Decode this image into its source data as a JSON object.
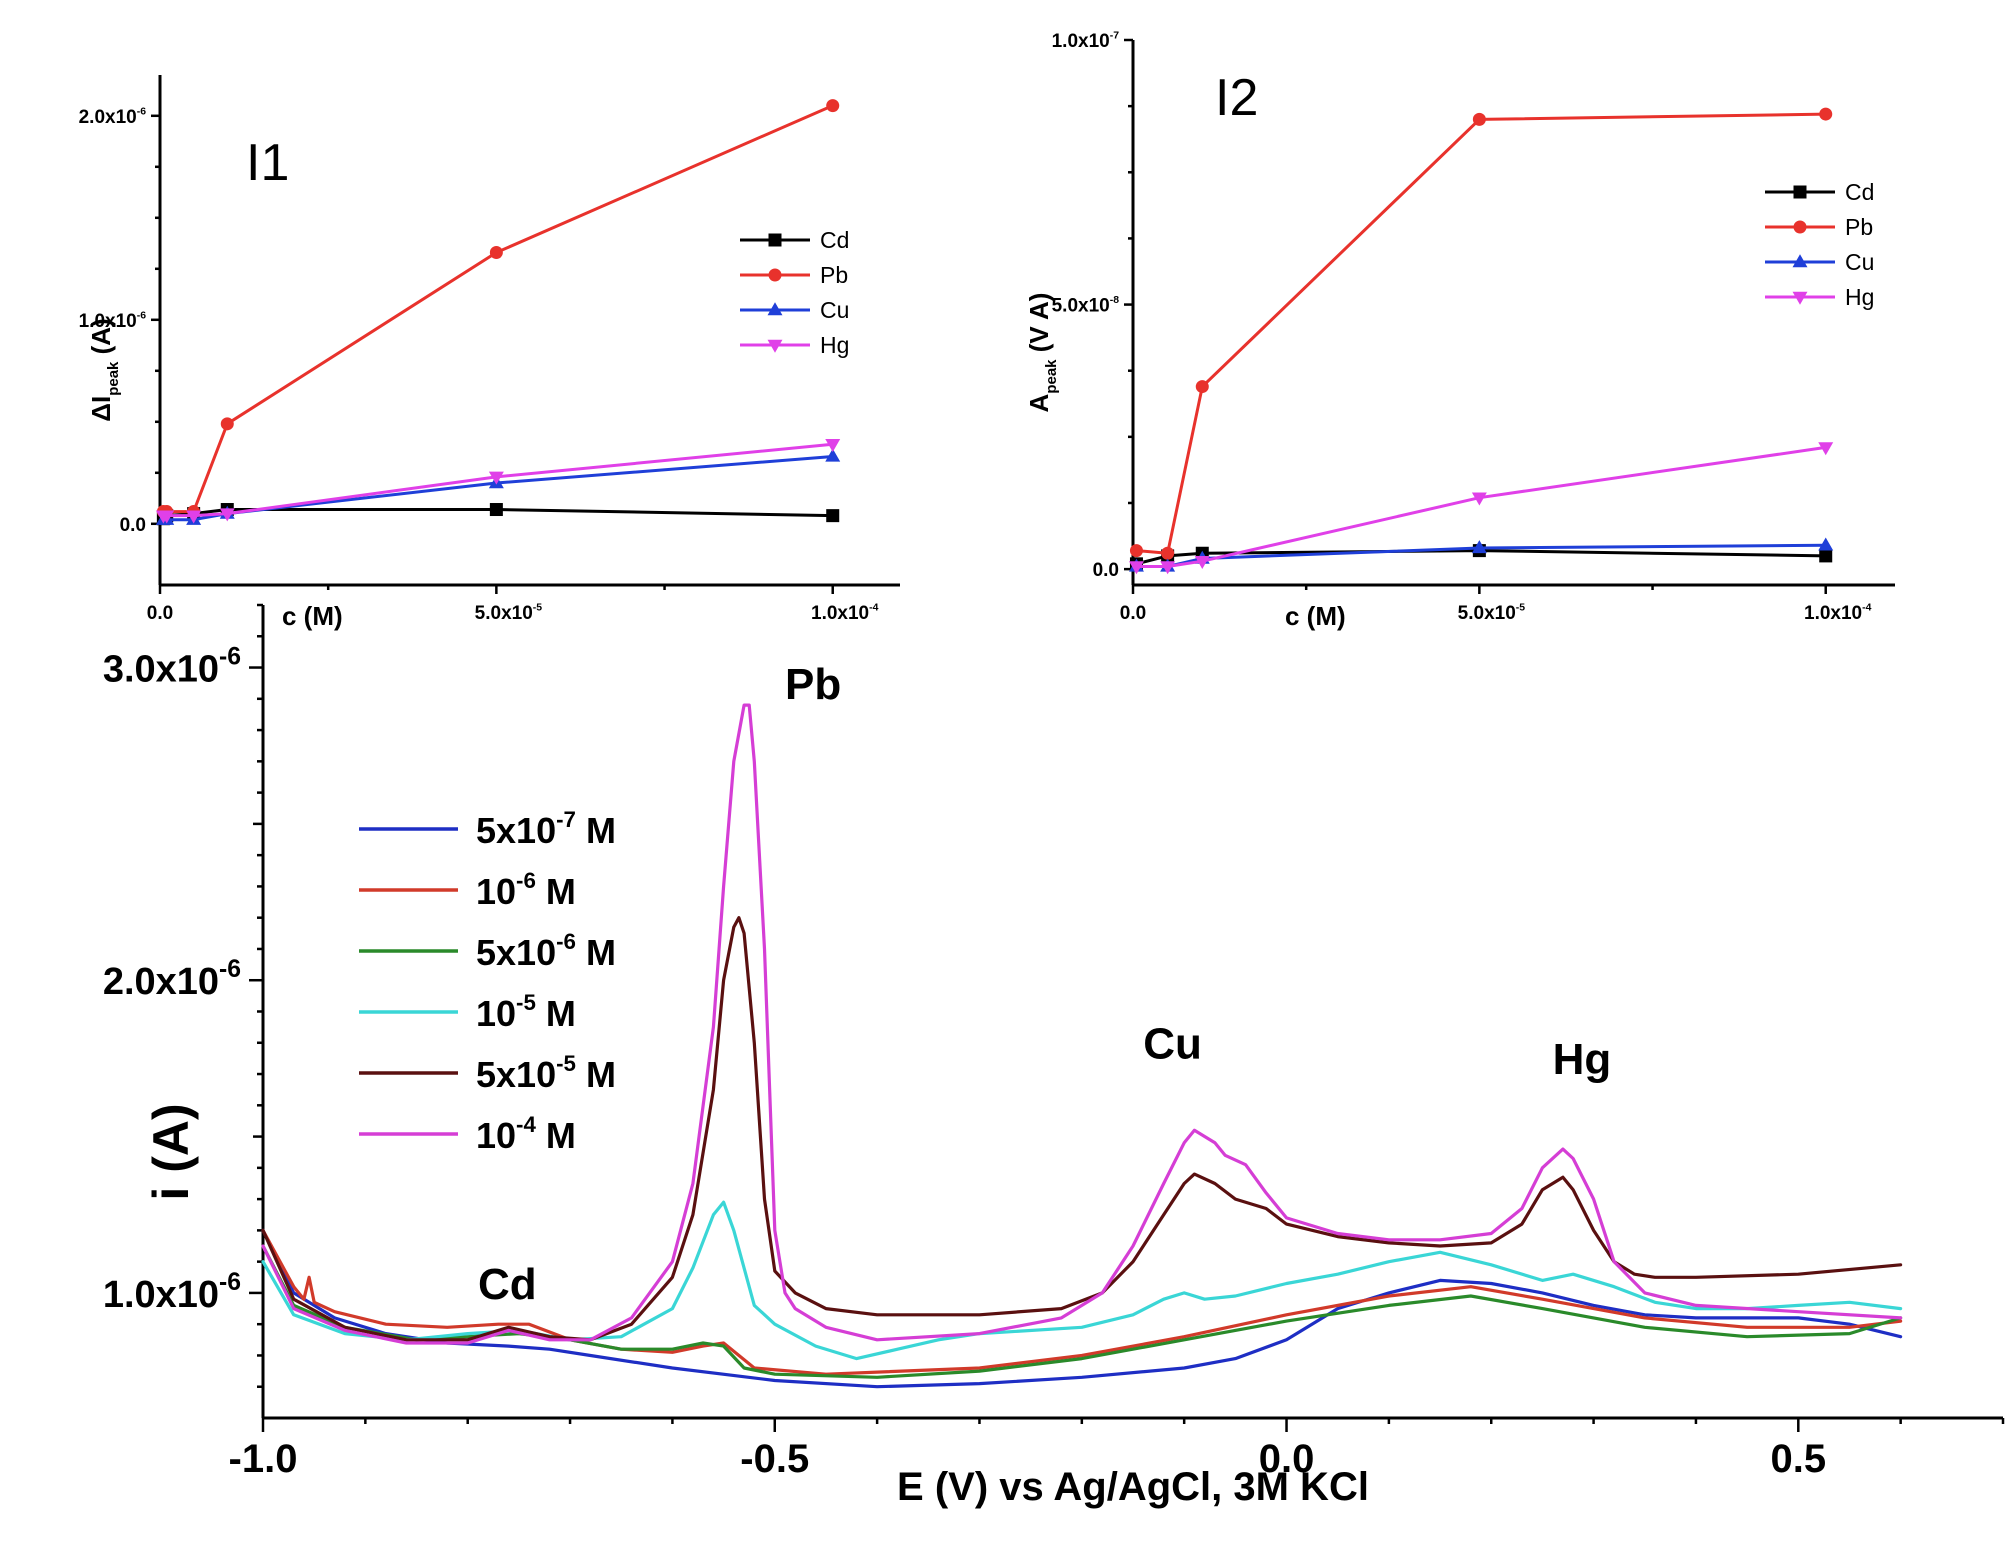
{
  "chart_data": [
    {
      "id": "I1",
      "type": "line",
      "panel_label": "I1",
      "xlabel": "c (M)",
      "ylabel_main": "ΔI",
      "ylabel_sub": "peak",
      "ylabel_unit": " (A)",
      "xlim": [
        0,
        0.00011
      ],
      "ylim": [
        -3e-07,
        2.2e-06
      ],
      "x_ticks": [
        0,
        5e-05,
        0.0001
      ],
      "x_tick_labels": [
        "0.0",
        "5.0x10",
        "1.0x10"
      ],
      "x_tick_exps": [
        "",
        "-5",
        "-4"
      ],
      "y_ticks": [
        0,
        1e-06,
        2e-06
      ],
      "y_tick_labels": [
        "0.0",
        "1.0x10",
        "2.0x10"
      ],
      "y_tick_exps": [
        "",
        "-6",
        "-6"
      ],
      "series": [
        {
          "name": "Cd",
          "color": "#000000",
          "marker": "square",
          "x": [
            5e-07,
            1e-06,
            5e-06,
            1e-05,
            5e-05,
            0.0001
          ],
          "y": [
            2.5e-08,
            4e-08,
            5e-08,
            7e-08,
            7e-08,
            4e-08
          ]
        },
        {
          "name": "Pb",
          "color": "#e8322c",
          "marker": "circle",
          "x": [
            5e-07,
            1e-06,
            5e-06,
            1e-05,
            5e-05,
            0.0001
          ],
          "y": [
            6e-08,
            6e-08,
            6e-08,
            4.9e-07,
            1.33e-06,
            2.05e-06
          ]
        },
        {
          "name": "Cu",
          "color": "#1f3fd8",
          "marker": "triangle-up",
          "x": [
            5e-07,
            1e-06,
            5e-06,
            1e-05,
            5e-05,
            0.0001
          ],
          "y": [
            2e-08,
            2e-08,
            2e-08,
            5e-08,
            2e-07,
            3.3e-07
          ]
        },
        {
          "name": "Hg",
          "color": "#e040e8",
          "marker": "triangle-down",
          "x": [
            5e-07,
            1e-06,
            5e-06,
            1e-05,
            5e-05,
            0.0001
          ],
          "y": [
            4e-08,
            4e-08,
            4e-08,
            5e-08,
            2.3e-07,
            3.9e-07
          ]
        }
      ],
      "legend_position": "middle-right"
    },
    {
      "id": "I2",
      "type": "line",
      "panel_label": "I2",
      "xlabel": "c (M)",
      "ylabel_main": "A",
      "ylabel_sub": "peak",
      "ylabel_unit": " (V A)",
      "xlim": [
        0,
        0.00011
      ],
      "ylim": [
        -3e-09,
        1e-07
      ],
      "x_ticks": [
        0,
        5e-05,
        0.0001
      ],
      "x_tick_labels": [
        "0.0",
        "5.0x10",
        "1.0x10"
      ],
      "x_tick_exps": [
        "",
        "-5",
        "-4"
      ],
      "y_ticks": [
        0,
        5e-08,
        1e-07
      ],
      "y_tick_labels": [
        "0.0",
        "5.0x10",
        "1.0x10"
      ],
      "y_tick_exps": [
        "",
        "-8",
        "-7"
      ],
      "series": [
        {
          "name": "Cd",
          "color": "#000000",
          "marker": "square",
          "x": [
            5e-07,
            5e-06,
            1e-05,
            5e-05,
            0.0001
          ],
          "y": [
            1e-09,
            2.5e-09,
            3e-09,
            3.5e-09,
            2.5e-09
          ]
        },
        {
          "name": "Pb",
          "color": "#e8322c",
          "marker": "circle",
          "x": [
            5e-07,
            5e-06,
            1e-05,
            5e-05,
            0.0001
          ],
          "y": [
            3.5e-09,
            3e-09,
            3.45e-08,
            8.5e-08,
            8.6e-08
          ]
        },
        {
          "name": "Cu",
          "color": "#1f3fd8",
          "marker": "triangle-up",
          "x": [
            5e-07,
            5e-06,
            1e-05,
            5e-05,
            0.0001
          ],
          "y": [
            5e-10,
            5e-10,
            2e-09,
            4e-09,
            4.5e-09
          ]
        },
        {
          "name": "Hg",
          "color": "#e040e8",
          "marker": "triangle-down",
          "x": [
            5e-07,
            5e-06,
            1e-05,
            5e-05,
            0.0001
          ],
          "y": [
            5e-10,
            5e-10,
            1.5e-09,
            1.35e-08,
            2.3e-08
          ]
        }
      ],
      "legend_position": "top-right"
    },
    {
      "id": "main",
      "type": "line",
      "xlabel": "E (V) vs Ag/AgCl, 3M KCl",
      "ylabel": "i (A)",
      "xlim": [
        -1.0,
        0.7
      ],
      "ylim": [
        6e-07,
        3.2e-06
      ],
      "x_ticks": [
        -1.0,
        -0.5,
        0.0,
        0.5
      ],
      "x_tick_labels": [
        "-1.0",
        "-0.5",
        "0.0",
        "0.5"
      ],
      "y_ticks": [
        1e-06,
        2e-06,
        3e-06
      ],
      "y_tick_labels": [
        "1.0x10",
        "2.0x10",
        "3.0x10"
      ],
      "y_tick_exps": [
        "-6",
        "-6",
        "-6"
      ],
      "annotations": [
        {
          "text": "Pb",
          "x": -0.49,
          "y": 2.9e-06
        },
        {
          "text": "Cd",
          "x": -0.79,
          "y": 9.8e-07
        },
        {
          "text": "Cu",
          "x": -0.14,
          "y": 1.75e-06
        },
        {
          "text": "Hg",
          "x": 0.26,
          "y": 1.7e-06
        }
      ],
      "legend_position": "top-left",
      "series": [
        {
          "name_base": "5x10",
          "name_exp": "-7",
          "name_unit": " M",
          "color": "#1e2ec4",
          "x": [
            -1.0,
            -0.97,
            -0.93,
            -0.88,
            -0.82,
            -0.76,
            -0.72,
            -0.68,
            -0.6,
            -0.5,
            -0.4,
            -0.3,
            -0.2,
            -0.1,
            -0.05,
            0.0,
            0.05,
            0.1,
            0.15,
            0.2,
            0.25,
            0.3,
            0.35,
            0.4,
            0.45,
            0.5,
            0.55,
            0.6
          ],
          "y": [
            1.2e-06,
            1e-06,
            9.2e-07,
            8.7e-07,
            8.4e-07,
            8.3e-07,
            8.2e-07,
            8e-07,
            7.6e-07,
            7.2e-07,
            7e-07,
            7.1e-07,
            7.3e-07,
            7.6e-07,
            7.9e-07,
            8.5e-07,
            9.5e-07,
            1e-06,
            1.04e-06,
            1.03e-06,
            1e-06,
            9.6e-07,
            9.3e-07,
            9.2e-07,
            9.2e-07,
            9.2e-07,
            9e-07,
            8.6e-07
          ]
        },
        {
          "name_base": "10",
          "name_exp": "-6",
          "name_unit": " M",
          "color": "#d13a2a",
          "x": [
            -1.0,
            -0.97,
            -0.96,
            -0.955,
            -0.95,
            -0.93,
            -0.88,
            -0.82,
            -0.77,
            -0.74,
            -0.7,
            -0.65,
            -0.6,
            -0.57,
            -0.55,
            -0.52,
            -0.45,
            -0.3,
            -0.2,
            -0.1,
            0.0,
            0.1,
            0.18,
            0.25,
            0.35,
            0.45,
            0.55,
            0.6
          ],
          "y": [
            1.2e-06,
            1.02e-06,
            9.8e-07,
            1.05e-06,
            9.7e-07,
            9.4e-07,
            9e-07,
            8.9e-07,
            9e-07,
            9e-07,
            8.5e-07,
            8.2e-07,
            8.1e-07,
            8.3e-07,
            8.4e-07,
            7.6e-07,
            7.4e-07,
            7.6e-07,
            8e-07,
            8.6e-07,
            9.3e-07,
            9.9e-07,
            1.02e-06,
            9.8e-07,
            9.2e-07,
            8.9e-07,
            8.9e-07,
            9.1e-07
          ]
        },
        {
          "name_base": "5x10",
          "name_exp": "-6",
          "name_unit": " M",
          "color": "#2a8a2a",
          "x": [
            -1.0,
            -0.97,
            -0.92,
            -0.85,
            -0.8,
            -0.75,
            -0.7,
            -0.65,
            -0.6,
            -0.57,
            -0.55,
            -0.53,
            -0.5,
            -0.4,
            -0.3,
            -0.2,
            -0.1,
            0.0,
            0.1,
            0.18,
            0.25,
            0.35,
            0.45,
            0.55,
            0.6
          ],
          "y": [
            1.15e-06,
            9.6e-07,
            8.9e-07,
            8.5e-07,
            8.6e-07,
            8.7e-07,
            8.5e-07,
            8.2e-07,
            8.2e-07,
            8.4e-07,
            8.3e-07,
            7.6e-07,
            7.4e-07,
            7.3e-07,
            7.5e-07,
            7.9e-07,
            8.5e-07,
            9.1e-07,
            9.6e-07,
            9.9e-07,
            9.5e-07,
            8.9e-07,
            8.6e-07,
            8.7e-07,
            9.2e-07
          ]
        },
        {
          "name_base": "10",
          "name_exp": "-5",
          "name_unit": " M",
          "color": "#3ad6d6",
          "x": [
            -1.0,
            -0.97,
            -0.92,
            -0.86,
            -0.8,
            -0.75,
            -0.7,
            -0.65,
            -0.6,
            -0.58,
            -0.56,
            -0.55,
            -0.54,
            -0.52,
            -0.5,
            -0.46,
            -0.42,
            -0.38,
            -0.34,
            -0.3,
            -0.2,
            -0.15,
            -0.12,
            -0.1,
            -0.08,
            -0.05,
            0.0,
            0.05,
            0.1,
            0.15,
            0.2,
            0.25,
            0.28,
            0.32,
            0.36,
            0.4,
            0.45,
            0.5,
            0.55,
            0.6
          ],
          "y": [
            1.1e-06,
            9.3e-07,
            8.7e-07,
            8.5e-07,
            8.7e-07,
            8.8e-07,
            8.5e-07,
            8.6e-07,
            9.5e-07,
            1.08e-06,
            1.25e-06,
            1.29e-06,
            1.2e-06,
            9.6e-07,
            9e-07,
            8.3e-07,
            7.9e-07,
            8.2e-07,
            8.5e-07,
            8.7e-07,
            8.9e-07,
            9.3e-07,
            9.8e-07,
            1e-06,
            9.8e-07,
            9.9e-07,
            1.03e-06,
            1.06e-06,
            1.1e-06,
            1.13e-06,
            1.09e-06,
            1.04e-06,
            1.06e-06,
            1.02e-06,
            9.7e-07,
            9.5e-07,
            9.5e-07,
            9.6e-07,
            9.7e-07,
            9.5e-07
          ]
        },
        {
          "name_base": "5x10",
          "name_exp": "-5",
          "name_unit": " M",
          "color": "#5a1010",
          "x": [
            -1.0,
            -0.97,
            -0.92,
            -0.86,
            -0.8,
            -0.76,
            -0.72,
            -0.68,
            -0.64,
            -0.6,
            -0.58,
            -0.56,
            -0.55,
            -0.54,
            -0.535,
            -0.53,
            -0.52,
            -0.51,
            -0.5,
            -0.48,
            -0.45,
            -0.4,
            -0.3,
            -0.22,
            -0.18,
            -0.15,
            -0.12,
            -0.1,
            -0.09,
            -0.07,
            -0.05,
            -0.02,
            0.0,
            0.05,
            0.1,
            0.15,
            0.2,
            0.23,
            0.25,
            0.27,
            0.28,
            0.3,
            0.32,
            0.34,
            0.36,
            0.4,
            0.5,
            0.6
          ],
          "y": [
            1.2e-06,
            9.8e-07,
            8.9e-07,
            8.5e-07,
            8.5e-07,
            8.9e-07,
            8.6e-07,
            8.5e-07,
            9e-07,
            1.05e-06,
            1.25e-06,
            1.65e-06,
            2e-06,
            2.17e-06,
            2.2e-06,
            2.15e-06,
            1.8e-06,
            1.3e-06,
            1.07e-06,
            1e-06,
            9.5e-07,
            9.3e-07,
            9.3e-07,
            9.5e-07,
            1e-06,
            1.1e-06,
            1.25e-06,
            1.35e-06,
            1.38e-06,
            1.35e-06,
            1.3e-06,
            1.27e-06,
            1.22e-06,
            1.18e-06,
            1.16e-06,
            1.15e-06,
            1.16e-06,
            1.22e-06,
            1.33e-06,
            1.37e-06,
            1.33e-06,
            1.2e-06,
            1.1e-06,
            1.06e-06,
            1.05e-06,
            1.05e-06,
            1.06e-06,
            1.09e-06
          ]
        },
        {
          "name_base": "10",
          "name_exp": "-4",
          "name_unit": " M",
          "color": "#d53ed5",
          "x": [
            -1.0,
            -0.97,
            -0.92,
            -0.86,
            -0.8,
            -0.76,
            -0.72,
            -0.68,
            -0.64,
            -0.6,
            -0.58,
            -0.56,
            -0.55,
            -0.54,
            -0.53,
            -0.525,
            -0.52,
            -0.51,
            -0.5,
            -0.49,
            -0.48,
            -0.45,
            -0.4,
            -0.3,
            -0.22,
            -0.18,
            -0.15,
            -0.12,
            -0.1,
            -0.09,
            -0.07,
            -0.06,
            -0.04,
            -0.02,
            0.0,
            0.05,
            0.1,
            0.15,
            0.2,
            0.23,
            0.25,
            0.27,
            0.28,
            0.3,
            0.32,
            0.35,
            0.4,
            0.5,
            0.6
          ],
          "y": [
            1.15e-06,
            9.5e-07,
            8.8e-07,
            8.4e-07,
            8.4e-07,
            8.8e-07,
            8.5e-07,
            8.5e-07,
            9.2e-07,
            1.1e-06,
            1.35e-06,
            1.85e-06,
            2.3e-06,
            2.7e-06,
            2.88e-06,
            2.88e-06,
            2.7e-06,
            2.1e-06,
            1.2e-06,
            1e-06,
            9.5e-07,
            8.9e-07,
            8.5e-07,
            8.7e-07,
            9.2e-07,
            1e-06,
            1.15e-06,
            1.35e-06,
            1.48e-06,
            1.52e-06,
            1.48e-06,
            1.44e-06,
            1.41e-06,
            1.32e-06,
            1.24e-06,
            1.19e-06,
            1.17e-06,
            1.17e-06,
            1.19e-06,
            1.27e-06,
            1.4e-06,
            1.46e-06,
            1.43e-06,
            1.3e-06,
            1.1e-06,
            1e-06,
            9.6e-07,
            9.4e-07,
            9.2e-07
          ]
        }
      ]
    }
  ]
}
